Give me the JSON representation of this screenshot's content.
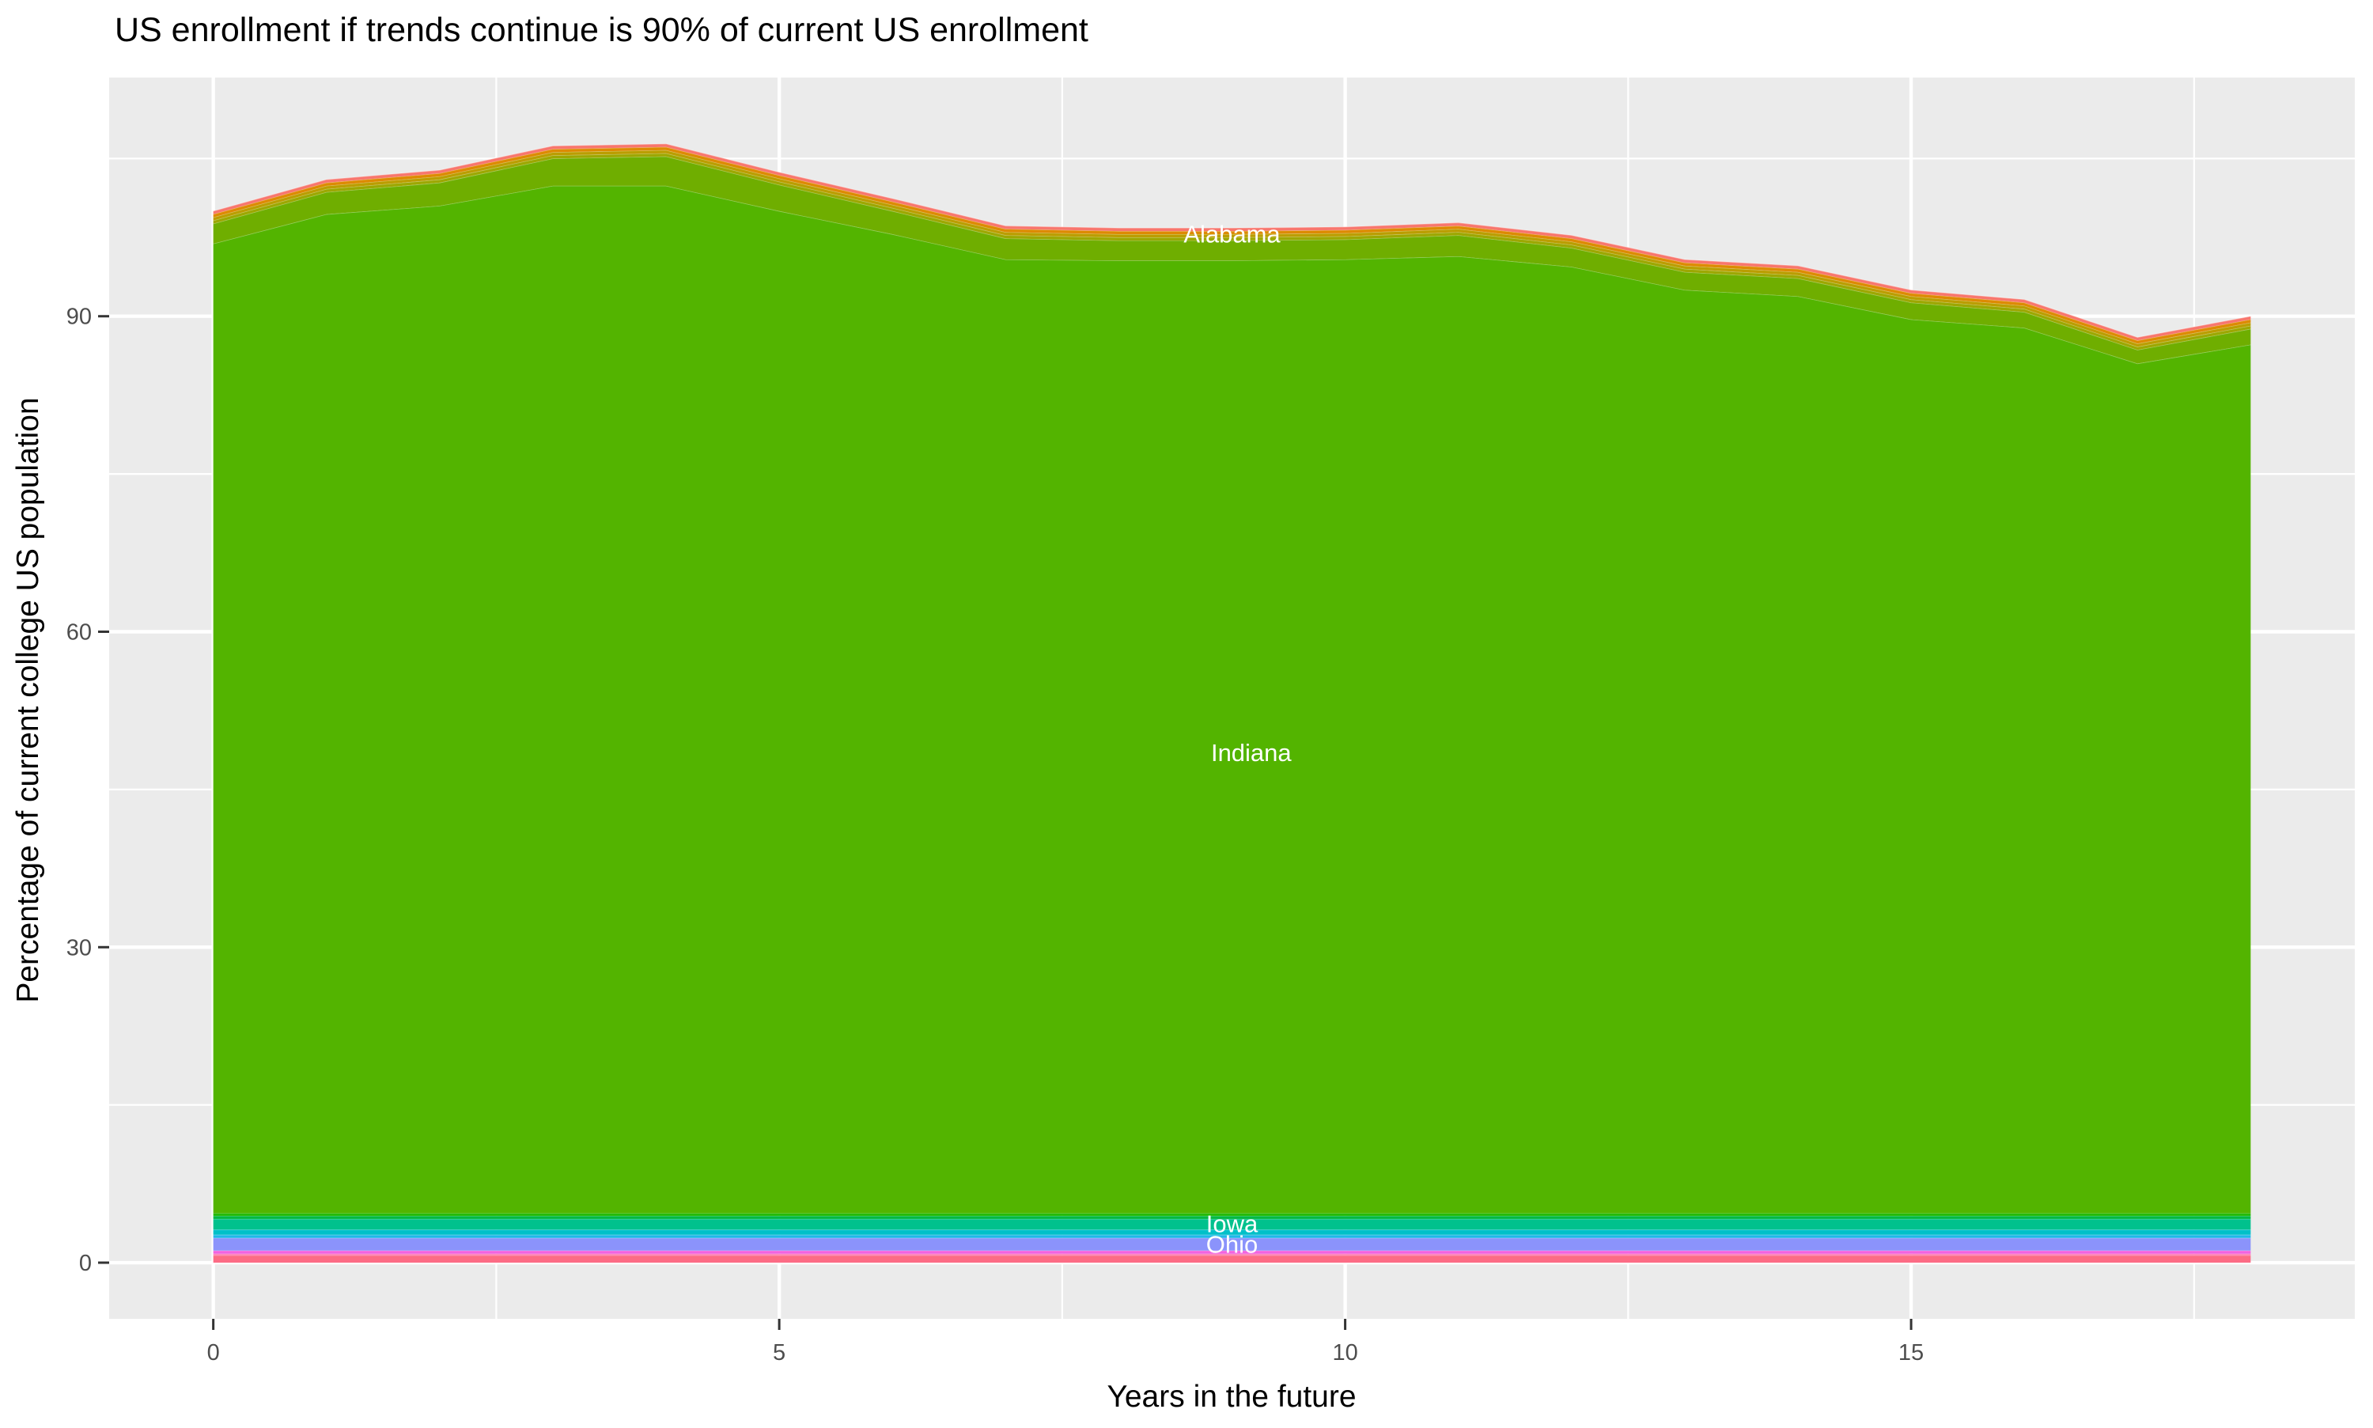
{
  "title": "US enrollment if trends continue is 90% of current US enrollment",
  "axes": {
    "x": {
      "title": "Years in the future",
      "ticks": [
        0,
        5,
        10,
        15
      ],
      "minor_ticks": [
        2.5,
        7.5,
        12.5,
        17.5
      ],
      "limits": [
        -0.92,
        18.92
      ]
    },
    "y": {
      "title": "Percentage of current college US population",
      "ticks": [
        0,
        30,
        60,
        90
      ],
      "minor_ticks": [
        15,
        45,
        75,
        105
      ],
      "limits": [
        -5.34,
        112.7
      ]
    }
  },
  "colors": {
    "page_background": "#FFFFFF",
    "panel_background": "#EBEBEB",
    "gridline": "#FFFFFF",
    "tick_label_text": "#4D4D4D",
    "tick_mark": "#333333",
    "title_text": "#000000",
    "axis_title_text": "#000000",
    "area_label_text": "#FFFFFF"
  },
  "chart_data": {
    "type": "area",
    "stacked": true,
    "grid": "major-and-minor",
    "legend_position": "none",
    "title": "US enrollment if trends continue is 90% of current US enrollment",
    "xlabel": "Years in the future",
    "ylabel": "Percentage of current college US population",
    "xlim": [
      -0.92,
      18.92
    ],
    "ylim": [
      -5.34,
      112.7
    ],
    "x": [
      0,
      1,
      2,
      3,
      4,
      5,
      6,
      7,
      8,
      9,
      10,
      11,
      12,
      13,
      14,
      15,
      16,
      17,
      18
    ],
    "stack_totals": [
      100.0,
      103.0,
      103.9,
      106.2,
      106.4,
      103.7,
      101.2,
      98.6,
      98.4,
      98.4,
      98.5,
      98.9,
      97.7,
      95.4,
      94.8,
      92.5,
      91.6,
      88.0,
      90.0
    ],
    "note": "Only four bands carry visible labels (Alabama, Indiana, Iowa, Ohio); the remaining thin rainbow bands are unlabeled in the image.",
    "series": [
      {
        "name": "band-rose-bottom",
        "label": "",
        "color": "#FC6C85",
        "value": 0.7
      },
      {
        "name": "band-pink-line",
        "label": "",
        "color": "#FF77B2",
        "value": 0.15
      },
      {
        "name": "band-magenta-line",
        "label": "",
        "color": "#F263E0",
        "value": 0.3
      },
      {
        "name": "band-ohio",
        "label": "Ohio",
        "color": "#8B93FB",
        "value": 1.2
      },
      {
        "name": "band-azure-line",
        "label": "",
        "color": "#1FB8E8",
        "value": 0.3
      },
      {
        "name": "band-cyan",
        "label": "",
        "color": "#00C0C8",
        "value": 0.5
      },
      {
        "name": "band-iowa",
        "label": "Iowa",
        "color": "#00C18D",
        "value": 1.0
      },
      {
        "name": "band-spring-line",
        "label": "",
        "color": "#00B943",
        "value": 0.3
      },
      {
        "name": "band-green-line",
        "label": "",
        "color": "#1CB800",
        "value": 0.25
      },
      {
        "name": "band-indiana",
        "label": "Indiana",
        "color": "#53B400",
        "values": [
          92.2,
          95.0,
          95.8,
          97.7,
          97.7,
          95.3,
          93.1,
          90.7,
          90.6,
          90.6,
          90.7,
          91.0,
          90.0,
          87.8,
          87.2,
          85.0,
          84.2,
          80.8,
          82.6
        ]
      },
      {
        "name": "band-chartreuse",
        "label": "",
        "color": "#6FAE00",
        "values": [
          1.9,
          2.1,
          2.2,
          2.6,
          2.8,
          2.5,
          2.2,
          2.0,
          1.9,
          1.9,
          1.9,
          2.0,
          1.8,
          1.7,
          1.7,
          1.6,
          1.5,
          1.3,
          1.5
        ]
      },
      {
        "name": "band-olive-line",
        "label": "",
        "color": "#9DA700",
        "value": 0.3
      },
      {
        "name": "band-gold-line",
        "label": "",
        "color": "#BB9D00",
        "value": 0.3
      },
      {
        "name": "band-orange-line",
        "label": "",
        "color": "#DD8A00",
        "value": 0.3
      },
      {
        "name": "band-alabama",
        "label": "Alabama",
        "color": "#F8766D",
        "value": 0.3
      }
    ],
    "area_labels": [
      {
        "text": "Alabama",
        "x": 9.0,
        "y": 97.8
      },
      {
        "text": "Indiana",
        "x": 9.17,
        "y": 48.5
      },
      {
        "text": "Iowa",
        "x": 9.0,
        "y": 3.7
      },
      {
        "text": "Ohio",
        "x": 9.0,
        "y": 1.75
      }
    ]
  }
}
